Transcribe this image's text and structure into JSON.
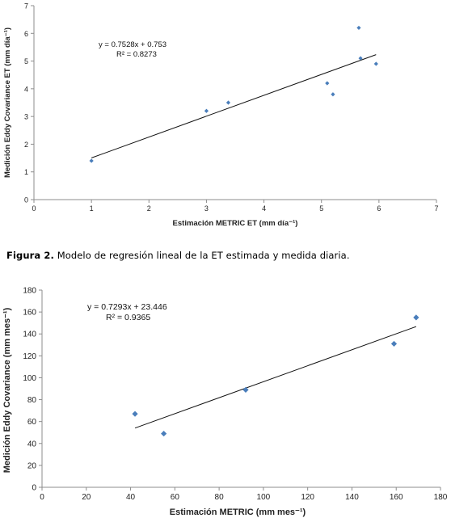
{
  "chart_data": [
    {
      "type": "scatter",
      "xlabel": "Estimación METRIC ET (mm día⁻¹)",
      "ylabel": "Medición Eddy Covariance ET (mm día⁻¹)",
      "xlim": [
        0,
        7
      ],
      "ylim": [
        0,
        7
      ],
      "xticks": [
        "0",
        "1",
        "2",
        "3",
        "4",
        "5",
        "6",
        "7"
      ],
      "yticks": [
        "0",
        "1",
        "2",
        "3",
        "4",
        "5",
        "6",
        "7"
      ],
      "points": [
        {
          "x": 1.0,
          "y": 1.4
        },
        {
          "x": 3.0,
          "y": 3.2
        },
        {
          "x": 3.38,
          "y": 3.5
        },
        {
          "x": 5.1,
          "y": 4.2
        },
        {
          "x": 5.2,
          "y": 3.8
        },
        {
          "x": 5.65,
          "y": 6.2
        },
        {
          "x": 5.68,
          "y": 5.1
        },
        {
          "x": 5.95,
          "y": 4.9
        }
      ],
      "trendline": {
        "slope": 0.7528,
        "intercept": 0.753,
        "x_range": [
          1.0,
          5.95
        ]
      },
      "equation": "y = 0.7528x + 0.753",
      "r2": "R² = 0.8273",
      "marker_color": "#4a7ebb",
      "grid": false
    },
    {
      "type": "scatter",
      "xlabel": "Estimación METRIC (mm mes⁻¹)",
      "ylabel": "Medición Eddy Covariance (mm mes⁻¹)",
      "xlim": [
        0,
        180
      ],
      "ylim": [
        0,
        180
      ],
      "xticks": [
        "0",
        "20",
        "40",
        "60",
        "80",
        "100",
        "120",
        "140",
        "160",
        "180"
      ],
      "yticks": [
        "0",
        "20",
        "40",
        "60",
        "80",
        "100",
        "120",
        "140",
        "160",
        "180"
      ],
      "points": [
        {
          "x": 42,
          "y": 67
        },
        {
          "x": 55,
          "y": 49
        },
        {
          "x": 92,
          "y": 89
        },
        {
          "x": 159,
          "y": 131
        },
        {
          "x": 169,
          "y": 155
        }
      ],
      "trendline": {
        "slope": 0.7293,
        "intercept": 23.446,
        "x_range": [
          42,
          169
        ]
      },
      "equation": "y = 0.7293x + 23.446",
      "r2": "R² = 0.9365",
      "marker_color": "#4a7ebb",
      "grid": false
    }
  ],
  "caption": {
    "label": "Figura 2.",
    "text": "Modelo de regresión lineal de la ET estimada y medida diaria."
  }
}
